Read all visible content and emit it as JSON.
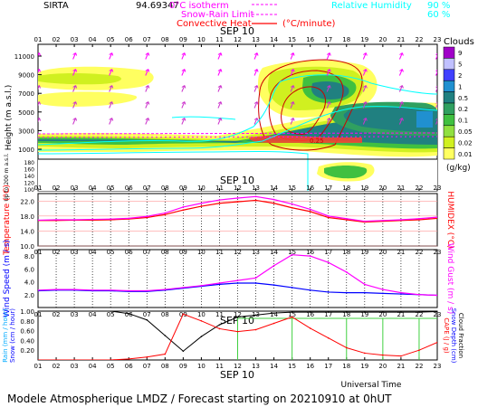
{
  "header": {
    "station": "SIRTA",
    "coords": "94.69347",
    "legend": {
      "isotherm": "0°C isotherm",
      "snow_rain": "Snow-Rain Limit",
      "convective": "Convective Heat",
      "convective_unit": "(°C/minute)",
      "rh": "Relative Humidity",
      "rh_90": "90 %",
      "rh_60": "60 %"
    }
  },
  "hours": [
    "01",
    "02",
    "03",
    "04",
    "05",
    "06",
    "07",
    "08",
    "09",
    "10",
    "11",
    "12",
    "13",
    "14",
    "15",
    "16",
    "17",
    "18",
    "19",
    "20",
    "21",
    "22",
    "23"
  ],
  "date_label": "SEP 10",
  "footer": {
    "universal_time": "Universal Time",
    "title": "Modele Atmospherique LMDZ / Forecast starting on 20210910 at 0hUT"
  },
  "panels": {
    "clouds": {
      "ylabel": "Height (m a.s.l.)",
      "ylabel_lower": "Up to 200 m a.s.l.",
      "yticks_upper": [
        11000,
        9000,
        7000,
        5000,
        3000,
        1000
      ],
      "yticks_lower": [
        180,
        160,
        140,
        120,
        100
      ],
      "colorbar_title": "Clouds",
      "colorbar_unit": "(g/kg)",
      "colorbar_ticks": [
        "9",
        "5",
        "2",
        "1",
        "0.5",
        "0.2",
        "0.1",
        "0.05",
        "0.02",
        "0.01"
      ],
      "colorbar_colors": [
        "#a000c8",
        "#c0c0ff",
        "#4040ff",
        "#2090d0",
        "#208080",
        "#30a060",
        "#40c040",
        "#90e040",
        "#d0f020",
        "#ffff60"
      ],
      "contour_label": "0.25"
    },
    "temperature": {
      "ylabel_left": "Temperature (°C)",
      "ylabel_right": "HUMIDEX (°C)",
      "yticks": [
        10.0,
        14.0,
        18.0,
        22.0
      ]
    },
    "wind": {
      "ylabel_left": "Wind Speed (m / s)",
      "ylabel_right": "Wind Gust (m / s)",
      "yticks": [
        2.0,
        4.0,
        6.0,
        8.0
      ]
    },
    "precip": {
      "ylabel_left": "Rain (mm / hour)",
      "ylabel_left2": "Snow (cm / hour)",
      "ylabel_right": "CAPE (J / g)",
      "ylabel_right2": "Snow Depth (cm)",
      "ylabel_right3": "Cloud Fraction",
      "yticks": [
        0.2,
        0.4,
        0.6,
        0.8,
        1.0
      ]
    }
  },
  "chart_data": [
    {
      "type": "line",
      "title": "Temperature / Humidex",
      "x": [
        1,
        2,
        3,
        4,
        5,
        6,
        7,
        8,
        9,
        10,
        11,
        12,
        13,
        14,
        15,
        16,
        17,
        18,
        19,
        20,
        21,
        22,
        23
      ],
      "ylim": [
        10,
        24
      ],
      "series": [
        {
          "name": "Temperature",
          "color": "#ff0000",
          "values": [
            16.8,
            16.8,
            16.9,
            16.9,
            17.0,
            17.2,
            17.6,
            18.4,
            19.6,
            20.6,
            21.4,
            21.8,
            22.2,
            21.4,
            20.2,
            19.2,
            17.6,
            17.0,
            16.4,
            16.6,
            16.8,
            17.0,
            17.4
          ]
        },
        {
          "name": "HUMIDEX",
          "color": "#ff00ff",
          "values": [
            16.9,
            17.0,
            17.0,
            17.1,
            17.2,
            17.4,
            17.9,
            18.8,
            20.4,
            21.4,
            22.3,
            22.8,
            23.2,
            22.4,
            21.2,
            19.8,
            18.0,
            17.3,
            16.6,
            16.8,
            17.0,
            17.3,
            17.7
          ]
        }
      ]
    },
    {
      "type": "line",
      "title": "Wind Speed / Wind Gust",
      "x": [
        1,
        2,
        3,
        4,
        5,
        6,
        7,
        8,
        9,
        10,
        11,
        12,
        13,
        14,
        15,
        16,
        17,
        18,
        19,
        20,
        21,
        22,
        23
      ],
      "ylim": [
        0,
        9
      ],
      "series": [
        {
          "name": "Wind Speed",
          "color": "#0000ff",
          "values": [
            2.6,
            2.7,
            2.7,
            2.6,
            2.6,
            2.5,
            2.5,
            2.7,
            3.0,
            3.3,
            3.6,
            3.8,
            3.8,
            3.5,
            3.1,
            2.7,
            2.4,
            2.3,
            2.3,
            2.2,
            2.1,
            2.0,
            1.9
          ]
        },
        {
          "name": "Wind Gust",
          "color": "#ff00ff",
          "values": [
            2.7,
            2.8,
            2.8,
            2.7,
            2.7,
            2.6,
            2.6,
            2.8,
            3.1,
            3.4,
            3.8,
            4.2,
            4.6,
            6.5,
            8.2,
            8.0,
            7.0,
            5.5,
            3.6,
            2.8,
            2.3,
            2.0,
            1.9
          ]
        }
      ]
    },
    {
      "type": "line",
      "title": "Precipitation / CAPE / Cloud fraction",
      "x": [
        1,
        2,
        3,
        4,
        5,
        6,
        7,
        8,
        9,
        10,
        11,
        12,
        13,
        14,
        15,
        16,
        17,
        18,
        19,
        20,
        21,
        22,
        23
      ],
      "ylim": [
        0,
        1.0
      ],
      "series": [
        {
          "name": "Cloud Fraction",
          "color": "#000000",
          "values": [
            1.0,
            1.0,
            1.0,
            1.0,
            1.0,
            0.95,
            0.82,
            0.5,
            0.18,
            0.48,
            0.72,
            0.88,
            0.92,
            0.96,
            0.98,
            0.98,
            0.98,
            0.98,
            0.98,
            0.98,
            0.98,
            0.98,
            0.99
          ]
        },
        {
          "name": "CAPE",
          "color": "#ff0000",
          "values": [
            0.0,
            0.0,
            0.0,
            0.0,
            0.0,
            0.02,
            0.06,
            0.12,
            0.94,
            0.8,
            0.64,
            0.58,
            0.62,
            0.75,
            0.88,
            0.65,
            0.45,
            0.25,
            0.14,
            0.1,
            0.08,
            0.2,
            0.36
          ]
        }
      ]
    }
  ]
}
